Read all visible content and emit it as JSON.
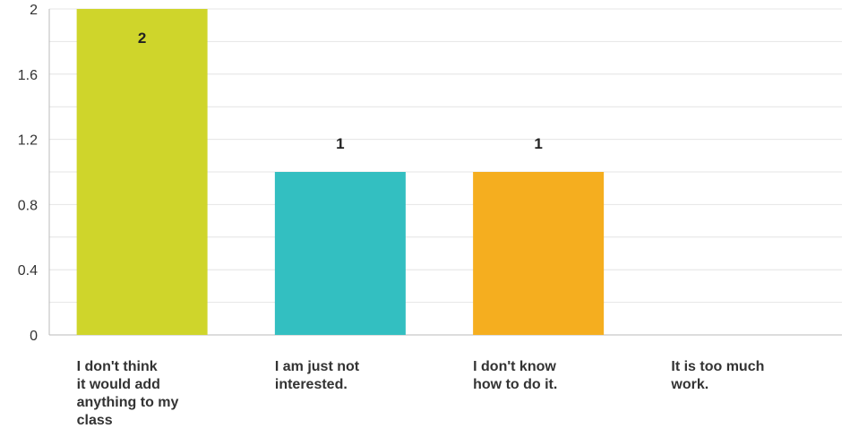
{
  "chart_data": {
    "type": "bar",
    "categories": [
      [
        "I don't think",
        "it would add",
        "anything to my",
        "class"
      ],
      [
        "I am just not",
        "interested."
      ],
      [
        "I don't know",
        "how to do it."
      ],
      [
        "It is too much",
        "work."
      ]
    ],
    "values": [
      2,
      1,
      1,
      0
    ],
    "data_labels": [
      "2",
      "1",
      "1",
      ""
    ],
    "colors": [
      "#cfd52b",
      "#33bfc1",
      "#f5ae1f",
      "#aaaaaa"
    ],
    "ylim": [
      0,
      2
    ],
    "yticks": [
      "0",
      "0.4",
      "0.8",
      "1.2",
      "1.6",
      "2"
    ],
    "grid": true
  }
}
